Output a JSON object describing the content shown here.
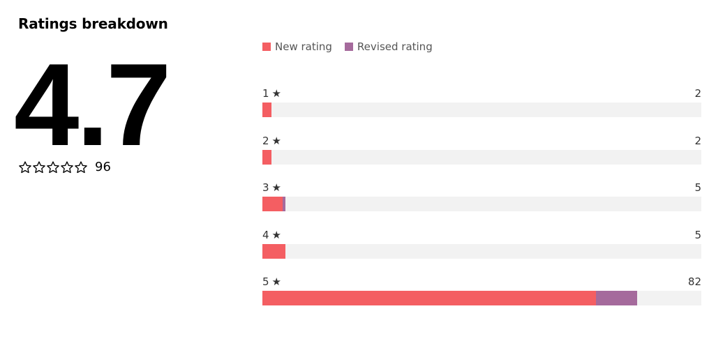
{
  "header": {
    "title": "Ratings breakdown"
  },
  "summary": {
    "average": "4.7",
    "star_count_total": "96",
    "stars_icon": "star-outline-icon"
  },
  "colors": {
    "new_rating": "#f45e62",
    "revised_rating": "#a56a9c",
    "track": "#f2f2f2"
  },
  "chart_data": {
    "type": "bar",
    "orientation": "horizontal",
    "stacked": true,
    "legend_position": "top-left",
    "categories": [
      "1",
      "2",
      "3",
      "4",
      "5"
    ],
    "star_symbol": "★",
    "totals": [
      "2",
      "2",
      "5",
      "5",
      "82"
    ],
    "max": 96,
    "series": [
      {
        "name": "New rating",
        "values": [
          2,
          2,
          4.5,
          5,
          73
        ]
      },
      {
        "name": "Revised rating",
        "values": [
          0,
          0,
          0.5,
          0,
          9
        ]
      }
    ]
  }
}
